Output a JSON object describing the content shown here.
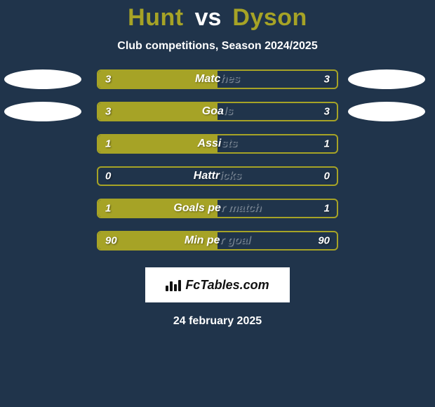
{
  "header": {
    "player_left": "Hunt",
    "vs_label": "vs",
    "player_right": "Dyson",
    "subtitle": "Club competitions, Season 2024/2025"
  },
  "colors": {
    "background": "#20344b",
    "accent": "#a6a326",
    "ellipse": "#ffffff",
    "text_light": "#ffffff"
  },
  "stats": [
    {
      "label": "Matches",
      "left_value": "3",
      "right_value": "3",
      "left_fill_pct": 50,
      "right_fill_pct": 0,
      "show_left_ellipse": true,
      "show_right_ellipse": true
    },
    {
      "label": "Goals",
      "left_value": "3",
      "right_value": "3",
      "left_fill_pct": 50,
      "right_fill_pct": 0,
      "show_left_ellipse": true,
      "show_right_ellipse": true
    },
    {
      "label": "Assists",
      "left_value": "1",
      "right_value": "1",
      "left_fill_pct": 50,
      "right_fill_pct": 0,
      "show_left_ellipse": false,
      "show_right_ellipse": false
    },
    {
      "label": "Hattricks",
      "left_value": "0",
      "right_value": "0",
      "left_fill_pct": 0,
      "right_fill_pct": 0,
      "show_left_ellipse": false,
      "show_right_ellipse": false
    },
    {
      "label": "Goals per match",
      "left_value": "1",
      "right_value": "1",
      "left_fill_pct": 50,
      "right_fill_pct": 0,
      "show_left_ellipse": false,
      "show_right_ellipse": false
    },
    {
      "label": "Min per goal",
      "left_value": "90",
      "right_value": "90",
      "left_fill_pct": 50,
      "right_fill_pct": 0,
      "show_left_ellipse": false,
      "show_right_ellipse": false
    }
  ],
  "brand": {
    "site_name": "FcTables.com"
  },
  "footer": {
    "date": "24 february 2025"
  }
}
